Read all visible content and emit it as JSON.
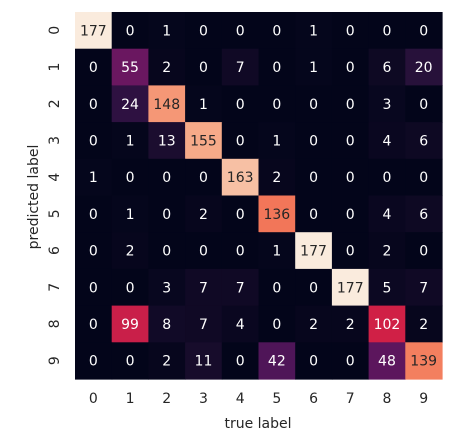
{
  "chart_data": {
    "type": "heatmap",
    "xlabel": "true label",
    "ylabel": "predicted label",
    "x_categories": [
      "0",
      "1",
      "2",
      "3",
      "4",
      "5",
      "6",
      "7",
      "8",
      "9"
    ],
    "y_categories": [
      "0",
      "1",
      "2",
      "3",
      "4",
      "5",
      "6",
      "7",
      "8",
      "9"
    ],
    "values": [
      [
        177,
        0,
        1,
        0,
        0,
        0,
        1,
        0,
        0,
        0
      ],
      [
        0,
        55,
        2,
        0,
        7,
        0,
        1,
        0,
        6,
        20
      ],
      [
        0,
        24,
        148,
        1,
        0,
        0,
        0,
        0,
        3,
        0
      ],
      [
        0,
        1,
        13,
        155,
        0,
        1,
        0,
        0,
        4,
        6
      ],
      [
        1,
        0,
        0,
        0,
        163,
        2,
        0,
        0,
        0,
        0
      ],
      [
        0,
        1,
        0,
        2,
        0,
        136,
        0,
        0,
        4,
        6
      ],
      [
        0,
        2,
        0,
        0,
        0,
        1,
        177,
        0,
        2,
        0
      ],
      [
        0,
        0,
        3,
        7,
        7,
        0,
        0,
        177,
        5,
        7
      ],
      [
        0,
        99,
        8,
        7,
        4,
        0,
        2,
        2,
        102,
        2
      ],
      [
        0,
        0,
        2,
        11,
        0,
        42,
        0,
        0,
        48,
        139
      ]
    ],
    "vmin": 0,
    "vmax": 177,
    "colormap": "rocket",
    "colorbar": false,
    "grid": false
  }
}
